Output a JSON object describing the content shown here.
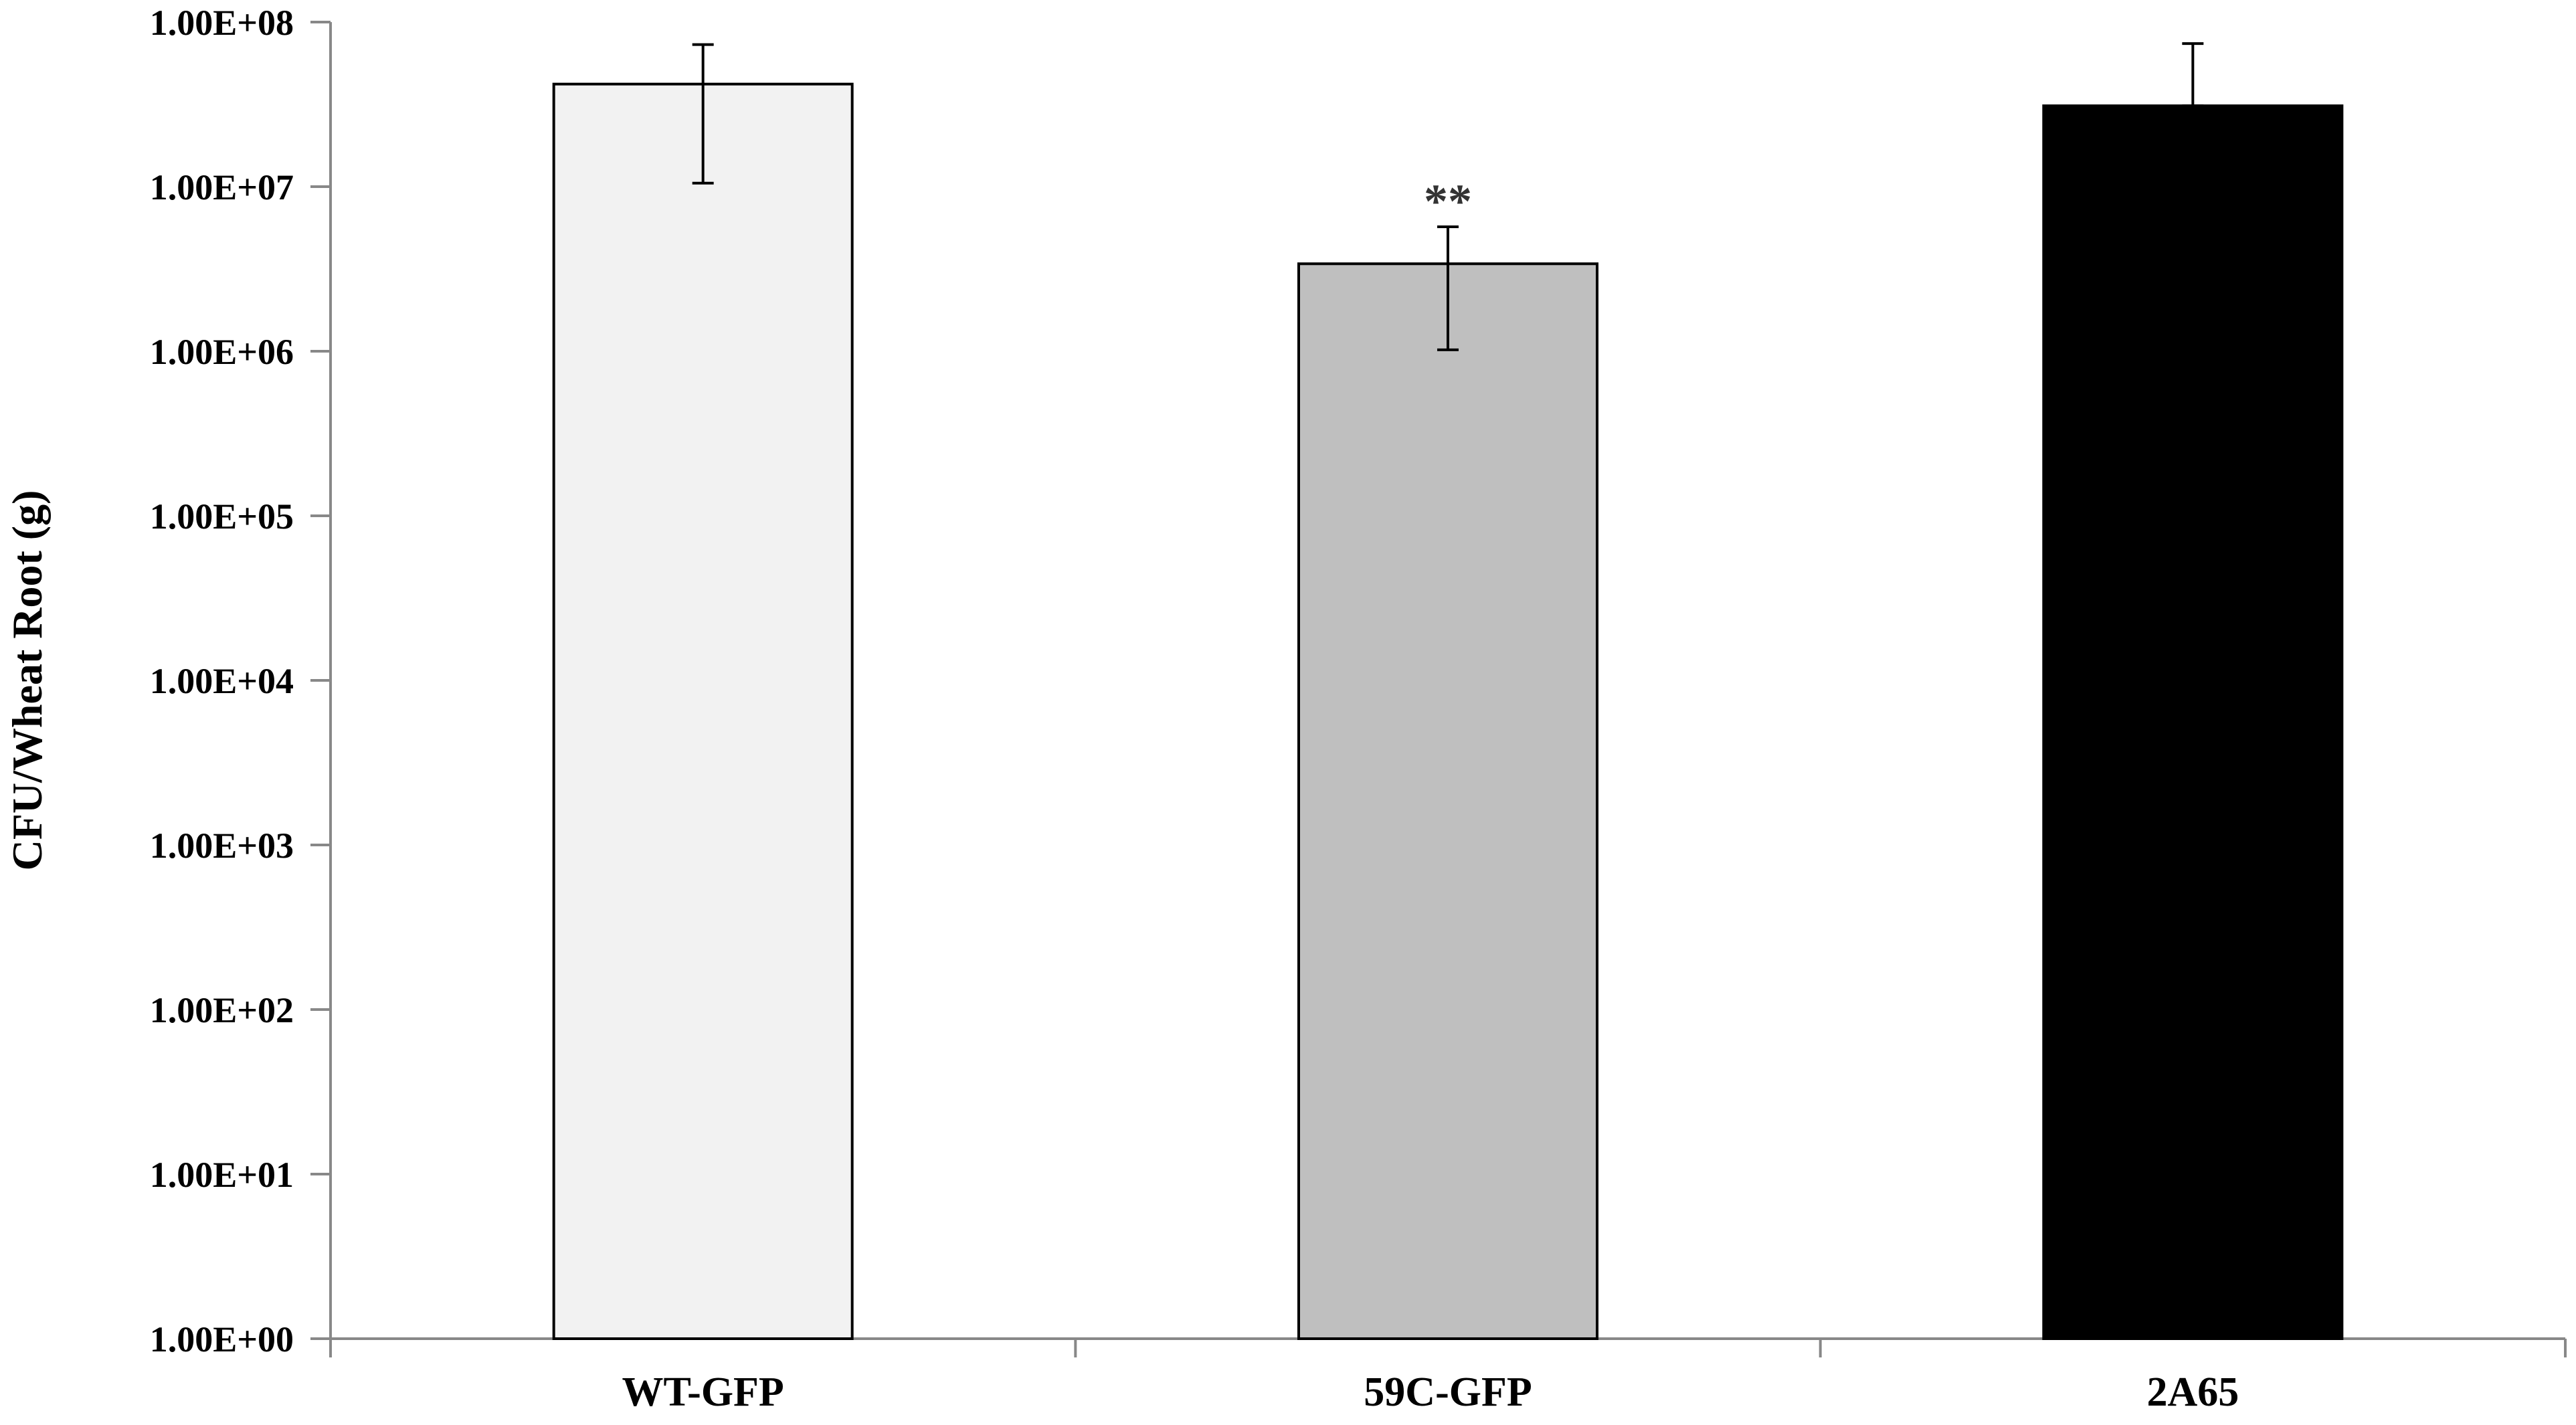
{
  "chart_data": {
    "type": "bar",
    "categories": [
      "WT-GFP",
      "59C-GFP",
      "2A65"
    ],
    "values": [
      42000000,
      3400000,
      31000000
    ],
    "error_low": [
      10500000,
      1020000,
      31000000
    ],
    "error_high": [
      73000000,
      5700000,
      74000000
    ],
    "bar_colors": [
      "#f2f2f2",
      "#bfbfbf",
      "#000000"
    ],
    "bar_stroke": "#000000",
    "ylabel": "CFU/Wheat Root (g)",
    "xlabel": "",
    "title": "",
    "y_scale": "log",
    "ylim": [
      1,
      100000000
    ],
    "y_ticks": [
      "1.00E+00",
      "1.00E+01",
      "1.00E+02",
      "1.00E+03",
      "1.00E+04",
      "1.00E+05",
      "1.00E+06",
      "1.00E+07",
      "1.00E+08"
    ],
    "annotations": [
      {
        "category": "59C-GFP",
        "text": "**"
      }
    ],
    "grid": false,
    "legend": "none"
  }
}
